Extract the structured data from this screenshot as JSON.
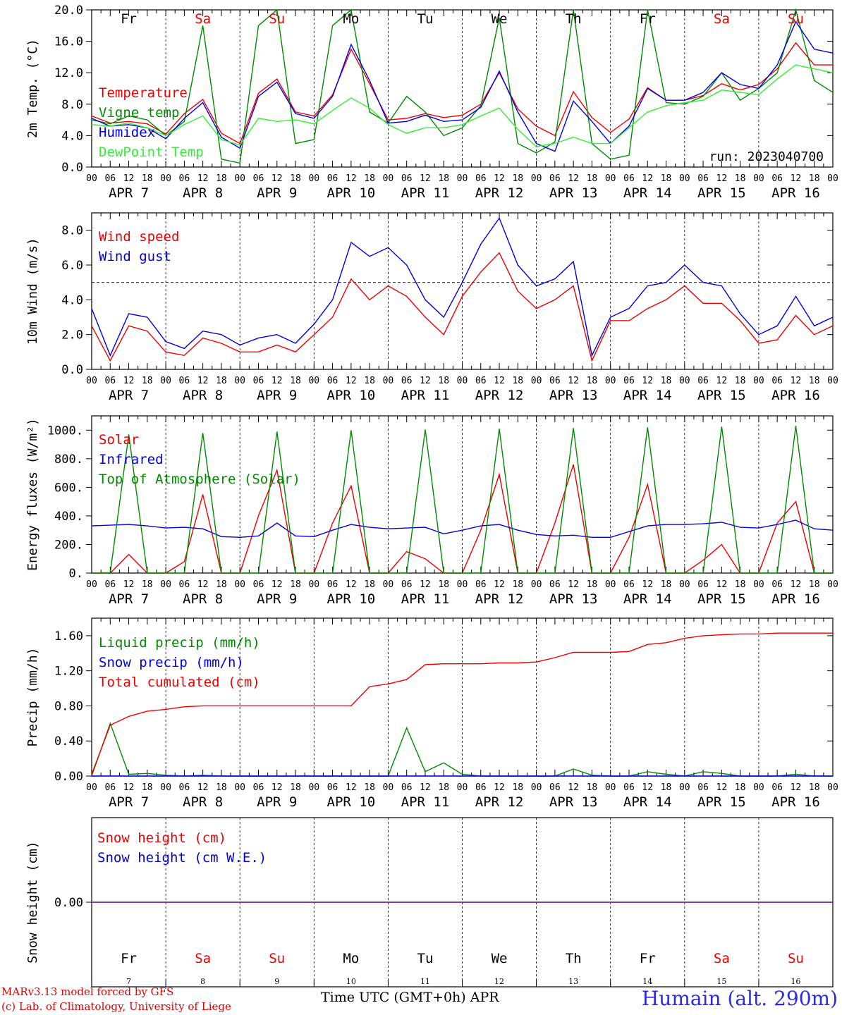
{
  "colors": {
    "red": "#ee0000",
    "green": "#008a00",
    "blue": "#0000e0",
    "lightgreen": "#33ee33",
    "purple": "#7a3f9e",
    "weekend": "#ee0000",
    "weekday": "#000000"
  },
  "days": [
    {
      "abbr": "Fr",
      "date": "APR  7",
      "num": "7",
      "weekend": false
    },
    {
      "abbr": "Sa",
      "date": "APR  8",
      "num": "8",
      "weekend": true
    },
    {
      "abbr": "Su",
      "date": "APR  9",
      "num": "9",
      "weekend": true
    },
    {
      "abbr": "Mo",
      "date": "APR 10",
      "num": "10",
      "weekend": false
    },
    {
      "abbr": "Tu",
      "date": "APR 11",
      "num": "11",
      "weekend": false
    },
    {
      "abbr": "We",
      "date": "APR 12",
      "num": "12",
      "weekend": false
    },
    {
      "abbr": "Th",
      "date": "APR 13",
      "num": "13",
      "weekend": false
    },
    {
      "abbr": "Fr",
      "date": "APR 14",
      "num": "14",
      "weekend": false
    },
    {
      "abbr": "Sa",
      "date": "APR 15",
      "num": "15",
      "weekend": true
    },
    {
      "abbr": "Su",
      "date": "APR 16",
      "num": "16",
      "weekend": true
    }
  ],
  "hour_ticks": [
    "00",
    "06",
    "12",
    "18"
  ],
  "final_tick": "00",
  "footer": {
    "credit_1": "MARv3.13 model forced by GFS",
    "credit_2": "(c) Lab. of Climatology, University of Liege",
    "xaxis_title": "Time UTC (GMT+0h) APR",
    "station": "Humain (alt. 290m)"
  },
  "chart_data": [
    {
      "type": "line",
      "ylabel": "2m Temp. (°C)",
      "ylim": [
        0,
        20
      ],
      "yticks": [
        "0.0",
        "4.0",
        "8.0",
        "12.0",
        "16.0",
        "20.0"
      ],
      "ytick_values": [
        0,
        4,
        8,
        12,
        16,
        20
      ],
      "annotation": "run: 2023040700",
      "x": [
        0,
        6,
        12,
        18,
        24,
        30,
        36,
        42,
        48,
        54,
        60,
        66,
        72,
        78,
        84,
        90,
        96,
        102,
        108,
        114,
        120,
        126,
        132,
        138,
        144,
        150,
        156,
        162,
        168,
        174,
        180,
        186,
        192,
        198,
        204,
        210,
        216,
        222,
        228,
        234,
        240
      ],
      "series": [
        {
          "name": "Temperature",
          "color": "red",
          "values": [
            6.5,
            5.6,
            5.8,
            5.5,
            4.2,
            6.8,
            8.6,
            4.3,
            3.0,
            9.4,
            11.2,
            7.0,
            6.5,
            9.2,
            15.0,
            10.6,
            6.0,
            6.2,
            6.8,
            6.3,
            6.6,
            8.0,
            12.0,
            7.4,
            5.2,
            4.0,
            9.6,
            6.3,
            4.4,
            6.1,
            10.1,
            8.5,
            8.5,
            9.1,
            10.6,
            9.8,
            10.5,
            12.5,
            15.8,
            13.0,
            13.0
          ]
        },
        {
          "name": "Vigne temp",
          "color": "green",
          "values": [
            6.0,
            5.5,
            6.5,
            6.0,
            4.0,
            5.8,
            18.0,
            1.0,
            0.5,
            18.0,
            20.0,
            3.0,
            3.5,
            18.0,
            21.0,
            7.0,
            5.6,
            9.0,
            7.0,
            4.0,
            5.0,
            7.8,
            19.0,
            3.0,
            1.8,
            3.2,
            20.0,
            3.0,
            1.0,
            1.5,
            20.0,
            8.2,
            8.0,
            9.0,
            12.0,
            8.5,
            10.0,
            12.0,
            20.0,
            11.0,
            9.5
          ]
        },
        {
          "name": "Humidex",
          "color": "blue",
          "values": [
            6.2,
            5.2,
            5.4,
            5.0,
            3.6,
            6.2,
            8.2,
            3.8,
            2.4,
            9.0,
            10.8,
            6.8,
            6.2,
            9.0,
            15.6,
            11.0,
            5.6,
            5.8,
            6.6,
            5.8,
            6.0,
            7.6,
            12.2,
            7.0,
            3.0,
            2.0,
            8.4,
            5.8,
            3.0,
            5.2,
            10.0,
            8.5,
            8.5,
            9.5,
            12.0,
            10.5,
            10.0,
            13.0,
            18.5,
            15.0,
            14.5
          ]
        },
        {
          "name": "DewPoint Temp",
          "color": "lightgreen",
          "values": [
            5.4,
            5.2,
            5.6,
            5.0,
            4.0,
            5.4,
            6.5,
            3.5,
            2.8,
            6.2,
            5.8,
            6.0,
            5.5,
            7.2,
            8.8,
            7.5,
            5.4,
            4.3,
            5.0,
            5.0,
            5.4,
            6.5,
            7.5,
            4.8,
            2.6,
            3.0,
            3.8,
            3.0,
            3.0,
            5.0,
            7.0,
            7.8,
            8.2,
            8.5,
            9.8,
            9.5,
            9.2,
            11.2,
            13.0,
            12.5,
            12.0
          ]
        }
      ]
    },
    {
      "type": "line",
      "ylabel": "10m Wind (m/s)",
      "ylim": [
        0,
        9
      ],
      "yticks": [
        "0.0",
        "2.0",
        "4.0",
        "6.0",
        "8.0"
      ],
      "ytick_values": [
        0,
        2,
        4,
        6,
        8
      ],
      "reference_line": 5.0,
      "x": [
        0,
        6,
        12,
        18,
        24,
        30,
        36,
        42,
        48,
        54,
        60,
        66,
        72,
        78,
        84,
        90,
        96,
        102,
        108,
        114,
        120,
        126,
        132,
        138,
        144,
        150,
        156,
        162,
        168,
        174,
        180,
        186,
        192,
        198,
        204,
        210,
        216,
        222,
        228,
        234,
        240
      ],
      "series": [
        {
          "name": "Wind speed",
          "color": "red",
          "values": [
            2.5,
            0.5,
            2.5,
            2.2,
            1.0,
            0.8,
            1.8,
            1.5,
            1.0,
            1.0,
            1.4,
            1.0,
            2.0,
            3.0,
            5.2,
            4.0,
            4.8,
            4.2,
            3.0,
            2.0,
            4.2,
            5.6,
            6.7,
            4.5,
            3.5,
            4.0,
            4.8,
            0.5,
            2.8,
            2.8,
            3.5,
            4.0,
            4.8,
            3.8,
            3.8,
            2.8,
            1.5,
            1.7,
            3.1,
            2.0,
            2.5
          ]
        },
        {
          "name": "Wind gust",
          "color": "blue",
          "values": [
            3.5,
            0.8,
            3.2,
            3.0,
            1.6,
            1.2,
            2.2,
            2.0,
            1.4,
            1.8,
            2.0,
            1.5,
            2.6,
            4.0,
            7.3,
            6.5,
            7.0,
            6.0,
            4.0,
            3.0,
            5.0,
            7.2,
            8.7,
            6.0,
            4.8,
            5.2,
            6.2,
            0.8,
            3.0,
            3.5,
            4.8,
            5.0,
            6.0,
            5.0,
            4.8,
            3.2,
            2.0,
            2.5,
            4.2,
            2.5,
            3.0
          ]
        }
      ]
    },
    {
      "type": "line",
      "ylabel": "Energy fluxes (W/m²)",
      "ylim": [
        0,
        1100
      ],
      "yticks": [
        "0.",
        "200.",
        "400.",
        "600.",
        "800.",
        "1000."
      ],
      "ytick_values": [
        0,
        200,
        400,
        600,
        800,
        1000
      ],
      "x": [
        0,
        6,
        12,
        18,
        24,
        30,
        36,
        42,
        48,
        54,
        60,
        66,
        72,
        78,
        84,
        90,
        96,
        102,
        108,
        114,
        120,
        126,
        132,
        138,
        144,
        150,
        156,
        162,
        168,
        174,
        180,
        186,
        192,
        198,
        204,
        210,
        216,
        222,
        228,
        234,
        240
      ],
      "series": [
        {
          "name": "Solar",
          "color": "red",
          "values": [
            0,
            0,
            130,
            0,
            0,
            80,
            550,
            0,
            0,
            400,
            720,
            0,
            0,
            350,
            610,
            0,
            0,
            150,
            100,
            0,
            0,
            300,
            690,
            0,
            0,
            350,
            760,
            0,
            0,
            250,
            620,
            0,
            0,
            90,
            200,
            0,
            0,
            350,
            500,
            0,
            0
          ]
        },
        {
          "name": "Infrared",
          "color": "blue",
          "values": [
            330,
            335,
            340,
            330,
            315,
            320,
            310,
            255,
            250,
            260,
            350,
            260,
            255,
            300,
            340,
            320,
            310,
            315,
            320,
            275,
            300,
            330,
            340,
            300,
            270,
            260,
            265,
            250,
            250,
            290,
            330,
            340,
            340,
            345,
            355,
            320,
            315,
            340,
            370,
            310,
            300
          ]
        },
        {
          "name": "Top of Atmosphere (Solar)",
          "color": "green",
          "values": [
            0,
            0,
            970,
            0,
            0,
            0,
            980,
            0,
            0,
            0,
            990,
            0,
            0,
            0,
            1000,
            0,
            0,
            0,
            1005,
            0,
            0,
            0,
            1010,
            0,
            0,
            0,
            1015,
            0,
            0,
            0,
            1020,
            0,
            0,
            0,
            1025,
            0,
            0,
            0,
            1030,
            0,
            0
          ]
        }
      ]
    },
    {
      "type": "line",
      "ylabel": "Precip (mm/h)",
      "ylim": [
        0,
        1.8
      ],
      "yticks": [
        "0.00",
        "0.40",
        "0.80",
        "1.20",
        "1.60"
      ],
      "ytick_values": [
        0,
        0.4,
        0.8,
        1.2,
        1.6
      ],
      "x": [
        0,
        6,
        12,
        18,
        24,
        30,
        36,
        42,
        48,
        54,
        60,
        66,
        72,
        78,
        84,
        90,
        96,
        102,
        108,
        114,
        120,
        126,
        132,
        138,
        144,
        150,
        156,
        162,
        168,
        174,
        180,
        186,
        192,
        198,
        204,
        210,
        216,
        222,
        228,
        234,
        240
      ],
      "series": [
        {
          "name": "Liquid precip (mm/h)",
          "color": "green",
          "values": [
            0.0,
            0.6,
            0.02,
            0.03,
            0.01,
            0.0,
            0.01,
            0.0,
            0.0,
            0.0,
            0.0,
            0.0,
            0.0,
            0.0,
            0.0,
            0.0,
            0.0,
            0.55,
            0.05,
            0.15,
            0.02,
            0.0,
            0.0,
            0.0,
            0.0,
            0.0,
            0.08,
            0.01,
            0.0,
            0.0,
            0.05,
            0.02,
            0.0,
            0.05,
            0.03,
            0.0,
            0.0,
            0.0,
            0.02,
            0.0,
            0.0
          ]
        },
        {
          "name": "Snow precip (mm/h)",
          "color": "blue",
          "values": [
            0,
            0,
            0,
            0,
            0,
            0,
            0,
            0,
            0,
            0,
            0,
            0,
            0,
            0,
            0,
            0,
            0,
            0,
            0,
            0,
            0,
            0,
            0,
            0,
            0,
            0,
            0,
            0,
            0,
            0,
            0,
            0,
            0,
            0,
            0,
            0,
            0,
            0,
            0,
            0,
            0
          ]
        },
        {
          "name": "Total cumulated (cm)",
          "color": "red",
          "values": [
            0.02,
            0.58,
            0.68,
            0.74,
            0.76,
            0.79,
            0.8,
            0.8,
            0.8,
            0.8,
            0.8,
            0.8,
            0.8,
            0.8,
            0.8,
            1.02,
            1.05,
            1.1,
            1.27,
            1.28,
            1.28,
            1.28,
            1.29,
            1.29,
            1.3,
            1.35,
            1.41,
            1.41,
            1.41,
            1.42,
            1.5,
            1.52,
            1.57,
            1.6,
            1.61,
            1.62,
            1.62,
            1.63,
            1.63,
            1.63,
            1.63
          ]
        }
      ]
    },
    {
      "type": "line",
      "ylabel": "Snow height (cm)",
      "ylim": [
        -1,
        1
      ],
      "yticks": [
        "0.00"
      ],
      "ytick_values": [
        0
      ],
      "x": [
        0,
        240
      ],
      "series": [
        {
          "name": "Snow height (cm)",
          "color": "red",
          "values": [
            0,
            0
          ]
        },
        {
          "name": "Snow height (cm W.E.)",
          "color": "blue",
          "values": [
            0,
            0
          ]
        }
      ]
    }
  ]
}
